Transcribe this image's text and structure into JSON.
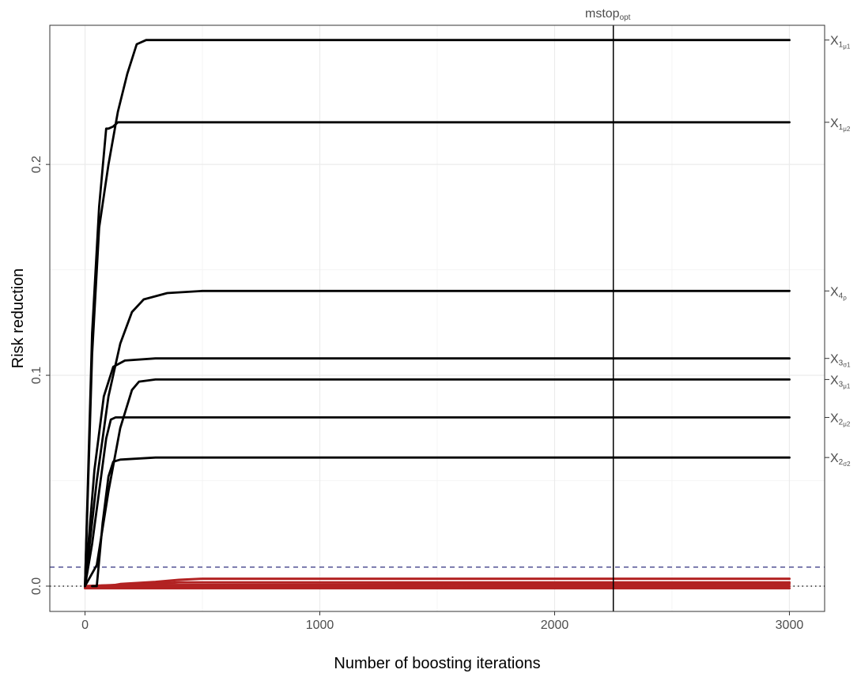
{
  "chart_data": {
    "type": "line",
    "title": "",
    "xlabel": "Number of boosting iterations",
    "ylabel": "Risk reduction",
    "xlim": [
      -150,
      3150
    ],
    "ylim": [
      -0.012,
      0.266
    ],
    "x_ticks": [
      {
        "value": 0,
        "label": "0"
      },
      {
        "value": 1000,
        "label": "1000"
      },
      {
        "value": 2000,
        "label": "2000"
      },
      {
        "value": 3000,
        "label": "3000"
      }
    ],
    "y_ticks": [
      {
        "value": 0.0,
        "label": "0.0"
      },
      {
        "value": 0.1,
        "label": "0.1"
      },
      {
        "value": 0.2,
        "label": "0.2"
      }
    ],
    "grid": true,
    "vline": {
      "x": 2250,
      "label_main": "mstop",
      "label_sub": "opt"
    },
    "dashed_hline": {
      "y": 0.009,
      "color": "#191970"
    },
    "dotted_hline": {
      "y": 0.0,
      "color": "#000000"
    },
    "series": [
      {
        "label_main": "X",
        "label_sub": "1",
        "label_subsub": "μ1",
        "color": "#000000",
        "points": [
          [
            0,
            0
          ],
          [
            30,
            0.11
          ],
          [
            60,
            0.17
          ],
          [
            100,
            0.2
          ],
          [
            140,
            0.225
          ],
          [
            180,
            0.243
          ],
          [
            220,
            0.257
          ],
          [
            260,
            0.259
          ],
          [
            400,
            0.259
          ],
          [
            3000,
            0.259
          ]
        ]
      },
      {
        "label_main": "X",
        "label_sub": "1",
        "label_subsub": "μ2",
        "color": "#000000",
        "points": [
          [
            0,
            0
          ],
          [
            30,
            0.12
          ],
          [
            60,
            0.18
          ],
          [
            90,
            0.217
          ],
          [
            100,
            0.217
          ],
          [
            120,
            0.218
          ],
          [
            140,
            0.22
          ],
          [
            300,
            0.22
          ],
          [
            3000,
            0.22
          ]
        ]
      },
      {
        "label_main": "X",
        "label_sub": "4",
        "label_subsub": "ρ",
        "color": "#000000",
        "points": [
          [
            0,
            0
          ],
          [
            50,
            0.05
          ],
          [
            100,
            0.09
          ],
          [
            150,
            0.115
          ],
          [
            200,
            0.13
          ],
          [
            250,
            0.136
          ],
          [
            350,
            0.139
          ],
          [
            500,
            0.14
          ],
          [
            3000,
            0.14
          ]
        ]
      },
      {
        "label_main": "X",
        "label_sub": "3",
        "label_subsub": "σ1",
        "color": "#000000",
        "points": [
          [
            0,
            0
          ],
          [
            40,
            0.055
          ],
          [
            80,
            0.09
          ],
          [
            120,
            0.104
          ],
          [
            170,
            0.107
          ],
          [
            300,
            0.108
          ],
          [
            3000,
            0.108
          ]
        ]
      },
      {
        "label_main": "X",
        "label_sub": "3",
        "label_subsub": "μ1",
        "color": "#000000",
        "points": [
          [
            0,
            0
          ],
          [
            50,
            0.01
          ],
          [
            100,
            0.045
          ],
          [
            150,
            0.075
          ],
          [
            200,
            0.093
          ],
          [
            230,
            0.097
          ],
          [
            300,
            0.098
          ],
          [
            3000,
            0.098
          ]
        ]
      },
      {
        "label_main": "X",
        "label_sub": "2",
        "label_subsub": "μ2",
        "color": "#000000",
        "points": [
          [
            0,
            0
          ],
          [
            30,
            0.02
          ],
          [
            60,
            0.045
          ],
          [
            90,
            0.07
          ],
          [
            110,
            0.079
          ],
          [
            130,
            0.08
          ],
          [
            200,
            0.08
          ],
          [
            3000,
            0.08
          ]
        ]
      },
      {
        "label_main": "X",
        "label_sub": "2",
        "label_subsub": "σ2",
        "color": "#000000",
        "points": [
          [
            30,
            0
          ],
          [
            50,
            0
          ],
          [
            75,
            0.03
          ],
          [
            100,
            0.052
          ],
          [
            120,
            0.059
          ],
          [
            150,
            0.06
          ],
          [
            300,
            0.061
          ],
          [
            3000,
            0.061
          ]
        ]
      },
      {
        "label_main": "",
        "label_sub": "",
        "label_subsub": "",
        "color": "#b22222",
        "points": [
          [
            0,
            0
          ],
          [
            100,
            0
          ],
          [
            150,
            0.001
          ],
          [
            300,
            0.002
          ],
          [
            400,
            0.003
          ],
          [
            500,
            0.0035
          ],
          [
            3000,
            0.0035
          ]
        ]
      },
      {
        "label_main": "",
        "label_sub": "",
        "label_subsub": "",
        "color": "#b22222",
        "points": [
          [
            0,
            0
          ],
          [
            120,
            0.0005
          ],
          [
            250,
            0.001
          ],
          [
            400,
            0.0018
          ],
          [
            3000,
            0.0018
          ]
        ]
      },
      {
        "label_main": "",
        "label_sub": "",
        "label_subsub": "",
        "color": "#b22222",
        "points": [
          [
            0,
            0
          ],
          [
            150,
            0.0005
          ],
          [
            3000,
            0.001
          ]
        ]
      },
      {
        "label_main": "",
        "label_sub": "",
        "label_subsub": "",
        "color": "#b22222",
        "points": [
          [
            0,
            -0.0005
          ],
          [
            3000,
            0
          ]
        ]
      },
      {
        "label_main": "",
        "label_sub": "",
        "label_subsub": "",
        "color": "#b22222",
        "points": [
          [
            0,
            -0.001
          ],
          [
            3000,
            -0.001
          ]
        ]
      }
    ]
  }
}
